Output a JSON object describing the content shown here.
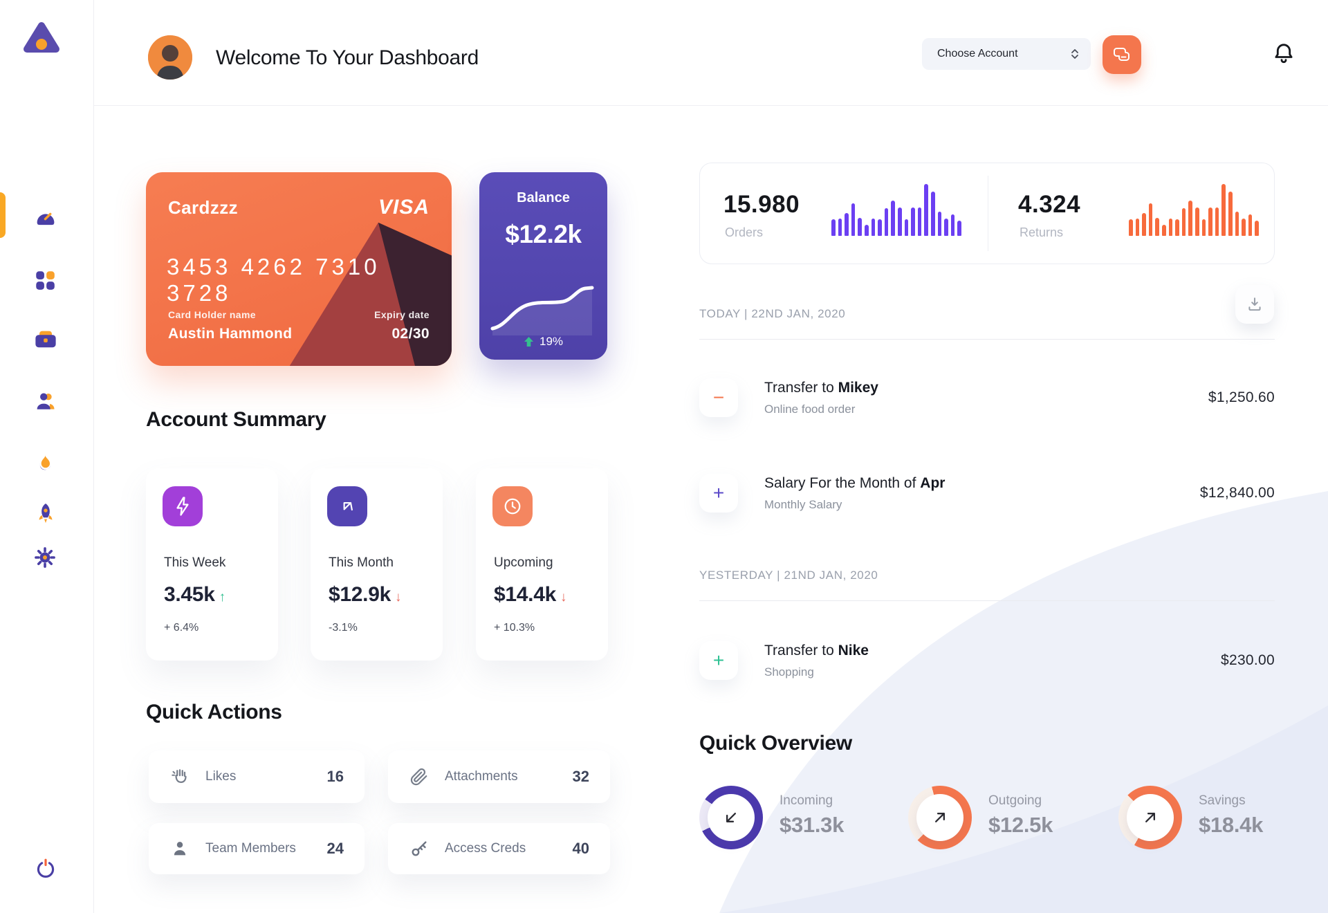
{
  "header": {
    "title": "Welcome To Your Dashboard",
    "account_select": {
      "label": "Choose Account"
    }
  },
  "sidebar": {
    "items": [
      {
        "id": "dashboard",
        "active": true
      },
      {
        "id": "apps",
        "active": false
      },
      {
        "id": "work",
        "active": false
      },
      {
        "id": "team",
        "active": false
      },
      {
        "id": "activity",
        "active": false
      },
      {
        "id": "launch",
        "active": false
      },
      {
        "id": "settings",
        "active": false
      }
    ]
  },
  "credit_card": {
    "name": "Cardzzz",
    "brand": "VISA",
    "number": "3453 4262 7310 3728",
    "holder_label": "Card Holder name",
    "holder_name": "Austin Hammond",
    "expiry_label": "Expiry date",
    "expiry": "02/30"
  },
  "balance_card": {
    "label": "Balance",
    "value": "$12.2k",
    "change": "19%"
  },
  "stats": {
    "orders": {
      "value": "15.980",
      "label": "Orders",
      "bar_color": "#6b3ff2",
      "bars": [
        32,
        34,
        44,
        63,
        35,
        21,
        34,
        32,
        53,
        68,
        55,
        32,
        55,
        55,
        100,
        86,
        47,
        34,
        42,
        29
      ]
    },
    "returns": {
      "value": "4.324",
      "label": "Returns",
      "bar_color": "#f76a3c",
      "bars": [
        32,
        34,
        44,
        63,
        35,
        21,
        34,
        32,
        53,
        68,
        55,
        32,
        55,
        55,
        100,
        86,
        47,
        34,
        42,
        29
      ]
    }
  },
  "transactions": {
    "groups": [
      {
        "header": "TODAY | 22ND JAN, 2020",
        "items": [
          {
            "sign": "−",
            "sign_color": "#f4764d",
            "title_prefix": "Transfer to ",
            "title_bold": "Mikey",
            "subtitle": "Online food order",
            "amount": "$1,250.60"
          },
          {
            "sign": "+",
            "sign_color": "#5b49c9",
            "title_prefix": "Salary For the Month of ",
            "title_bold": "Apr",
            "subtitle": "Monthly Salary",
            "amount": "$12,840.00"
          }
        ]
      },
      {
        "header": "YESTERDAY | 21ND JAN, 2020",
        "items": [
          {
            "sign": "+",
            "sign_color": "#2fc193",
            "title_prefix": "Transfer to ",
            "title_bold": "Nike",
            "subtitle": "Shopping",
            "amount": "$230.00"
          }
        ]
      }
    ]
  },
  "account_summary": {
    "title": "Account Summary",
    "cards": [
      {
        "label": "This Week",
        "value": "3.45k",
        "arrow": "↑",
        "arrow_color": "#2fbf8f",
        "change": "+ 6.4%",
        "icon_bg": "#a23fd9",
        "icon": "bolt"
      },
      {
        "label": "This Month",
        "value": "$12.9k",
        "arrow": "↓",
        "arrow_color": "#e8695d",
        "change": "-3.1%",
        "icon_bg": "#5344b2",
        "icon": "arrow-up-left"
      },
      {
        "label": "Upcoming",
        "value": "$14.4k",
        "arrow": "↓",
        "arrow_color": "#e8695d",
        "change": "+ 10.3%",
        "icon_bg": "#f48660",
        "icon": "clock"
      }
    ]
  },
  "quick_actions": {
    "title": "Quick Actions",
    "items": [
      {
        "label": "Likes",
        "count": "16",
        "icon": "clap"
      },
      {
        "label": "Attachments",
        "count": "32",
        "icon": "paperclip"
      },
      {
        "label": "Team Members",
        "count": "24",
        "icon": "person"
      },
      {
        "label": "Access Creds",
        "count": "40",
        "icon": "key"
      }
    ]
  },
  "quick_overview": {
    "title": "Quick Overview",
    "items": [
      {
        "label": "Incoming",
        "value": "$31.3k",
        "color": "#4b39ad",
        "track": "#ece9f6",
        "arc_from": 305,
        "arc_deg": 300,
        "arrow": "down-left"
      },
      {
        "label": "Outgoing",
        "value": "$12.5k",
        "color": "#f4764d",
        "track": "#f7efe9",
        "arc_from": 345,
        "arc_deg": 240,
        "arrow": "up-right"
      },
      {
        "label": "Savings",
        "value": "$18.4k",
        "color": "#f4764d",
        "track": "#f7efe9",
        "arc_from": 315,
        "arc_deg": 255,
        "arrow": "up-right"
      }
    ]
  }
}
